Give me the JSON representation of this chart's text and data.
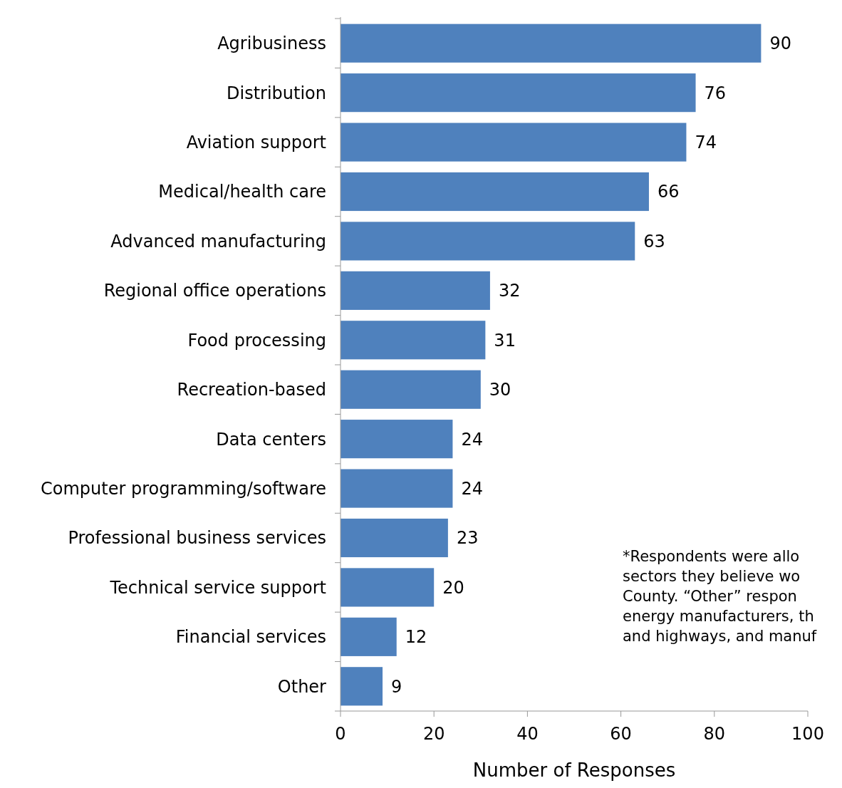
{
  "chart_data": {
    "type": "bar",
    "orientation": "horizontal",
    "xlabel": "Number of Responses",
    "categories": [
      "Agribusiness",
      "Distribution",
      "Aviation support",
      "Medical/health care",
      "Advanced manufacturing",
      "Regional office operations",
      "Food processing",
      "Recreation-based",
      "Data centers",
      "Computer programming/software",
      "Professional business services",
      "Technical service support",
      "Financial services",
      "Other"
    ],
    "values": [
      90,
      76,
      74,
      66,
      63,
      32,
      31,
      30,
      24,
      24,
      23,
      20,
      12,
      9
    ],
    "color": "#4f81bd",
    "xlim": [
      0,
      100
    ],
    "xticks": [
      0,
      20,
      40,
      60,
      80,
      100
    ],
    "data_labels": true,
    "annotations": [
      "*Respondents were allo\nsectors they believe wo\nCounty. “Other” respon\nenergy manufacturers, th\nand highways, and manuf"
    ]
  }
}
